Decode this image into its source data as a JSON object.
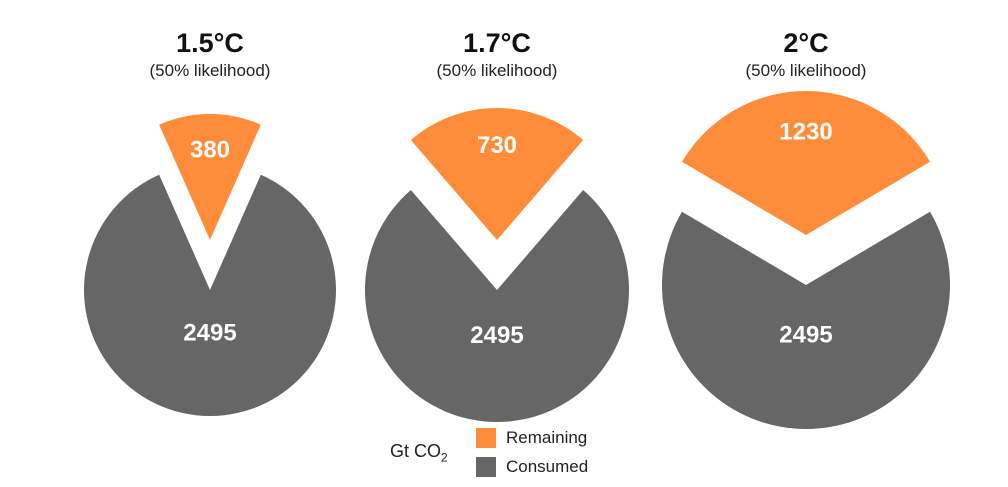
{
  "chart_data": [
    {
      "type": "pie",
      "title": "1.5°C",
      "subtitle": "(50% likelihood)",
      "slices": [
        {
          "label": "Remaining",
          "value": 380
        },
        {
          "label": "Consumed",
          "value": 2495
        }
      ]
    },
    {
      "type": "pie",
      "title": "1.7°C",
      "subtitle": "(50% likelihood)",
      "slices": [
        {
          "label": "Remaining",
          "value": 730
        },
        {
          "label": "Consumed",
          "value": 2495
        }
      ]
    },
    {
      "type": "pie",
      "title": "2°C",
      "subtitle": "(50% likelihood)",
      "slices": [
        {
          "label": "Remaining",
          "value": 1230
        },
        {
          "label": "Consumed",
          "value": 2495
        }
      ]
    }
  ],
  "colors": {
    "remaining": "#FF8C3A",
    "consumed": "#666666"
  },
  "legend": {
    "unit_prefix": "Gt CO",
    "unit_subscript": "2",
    "items": [
      "Remaining",
      "Consumed"
    ]
  }
}
